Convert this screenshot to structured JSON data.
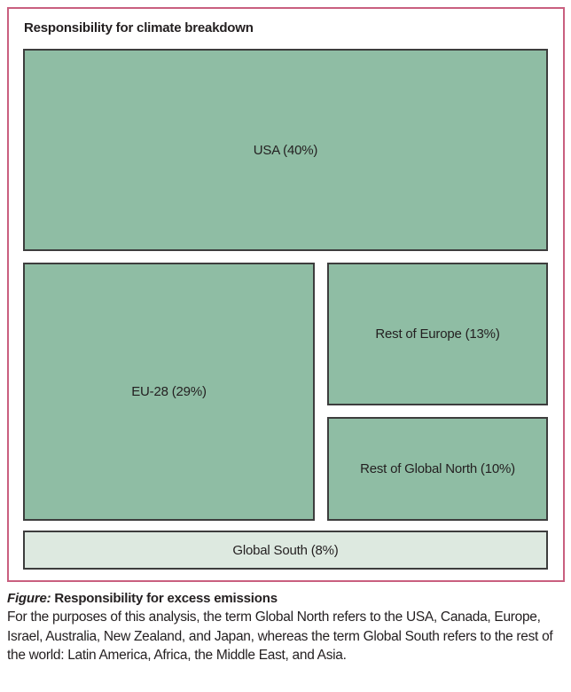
{
  "panel": {
    "title": "Responsibility for climate breakdown"
  },
  "chart_data": {
    "type": "treemap",
    "title": "Responsibility for climate breakdown",
    "categories": [
      "USA",
      "EU-28",
      "Rest of Europe",
      "Rest of Global North",
      "Global South"
    ],
    "values": [
      40,
      29,
      13,
      10,
      8
    ],
    "unit": "percent",
    "legend_position": "none",
    "grid": false,
    "blocks": [
      {
        "name": "USA",
        "value": 40,
        "label": "USA (40%)"
      },
      {
        "name": "EU-28",
        "value": 29,
        "label": "EU-28 (29%)"
      },
      {
        "name": "Rest of Europe",
        "value": 13,
        "label": "Rest of Europe (13%)"
      },
      {
        "name": "Rest of Global North",
        "value": 10,
        "label": "Rest of Global North (10%)"
      },
      {
        "name": "Global South",
        "value": 8,
        "label": "Global South (8%)"
      }
    ],
    "colors": {
      "block_fill_green": "#8fbda4",
      "block_fill_light_green": "#dde9e0",
      "block_border": "#3d3d3d",
      "panel_border_pink": "#c95f7f",
      "text": "#231f20"
    }
  },
  "caption": {
    "figure_label": "Figure:",
    "title": "Responsibility for excess emissions",
    "body": "For the purposes of this analysis, the term Global North refers to the USA, Canada, Europe, Israel, Australia, New Zealand, and Japan, whereas the term Global South refers to the rest of the world: Latin America, Africa, the Middle East, and Asia."
  }
}
